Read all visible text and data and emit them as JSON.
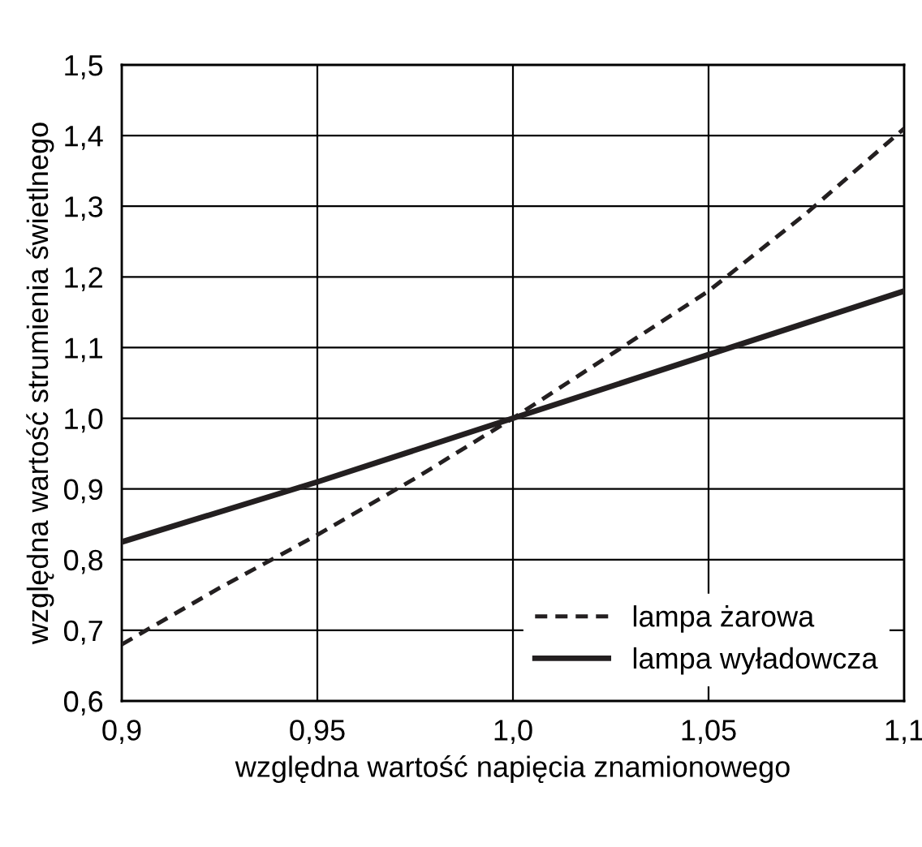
{
  "chart_data": {
    "type": "line",
    "xlabel": "względna wartość napięcia znamionowego",
    "ylabel": "względna wartość strumienia świetlnego",
    "xlim": [
      0.9,
      1.1
    ],
    "ylim": [
      0.6,
      1.5
    ],
    "xticks": [
      {
        "value": 0.9,
        "label": "0,9"
      },
      {
        "value": 0.95,
        "label": "0,95"
      },
      {
        "value": 1.0,
        "label": "1,0"
      },
      {
        "value": 1.05,
        "label": "1,05"
      },
      {
        "value": 1.1,
        "label": "1,1"
      }
    ],
    "yticks": [
      {
        "value": 0.6,
        "label": "0,6"
      },
      {
        "value": 0.7,
        "label": "0,7"
      },
      {
        "value": 0.8,
        "label": "0,8"
      },
      {
        "value": 0.9,
        "label": "0,9"
      },
      {
        "value": 1.0,
        "label": "1,0"
      },
      {
        "value": 1.1,
        "label": "1,1"
      },
      {
        "value": 1.2,
        "label": "1,2"
      },
      {
        "value": 1.3,
        "label": "1,3"
      },
      {
        "value": 1.4,
        "label": "1,4"
      },
      {
        "value": 1.5,
        "label": "1,5"
      }
    ],
    "grid": true,
    "legend": "bottom right",
    "series": [
      {
        "name": "lampa żarowa",
        "color": "#231f20",
        "line_style": "dashed",
        "x": [
          0.9,
          0.925,
          0.95,
          0.975,
          1.0,
          1.025,
          1.05,
          1.075,
          1.1
        ],
        "values": [
          0.68,
          0.76,
          0.835,
          0.915,
          1.0,
          1.09,
          1.18,
          1.29,
          1.41
        ]
      },
      {
        "name": "lampa wyładowcza",
        "color": "#231f20",
        "line_style": "solid",
        "x": [
          0.9,
          0.95,
          1.0,
          1.05,
          1.1
        ],
        "values": [
          0.825,
          0.91,
          1.0,
          1.09,
          1.18
        ]
      }
    ]
  }
}
